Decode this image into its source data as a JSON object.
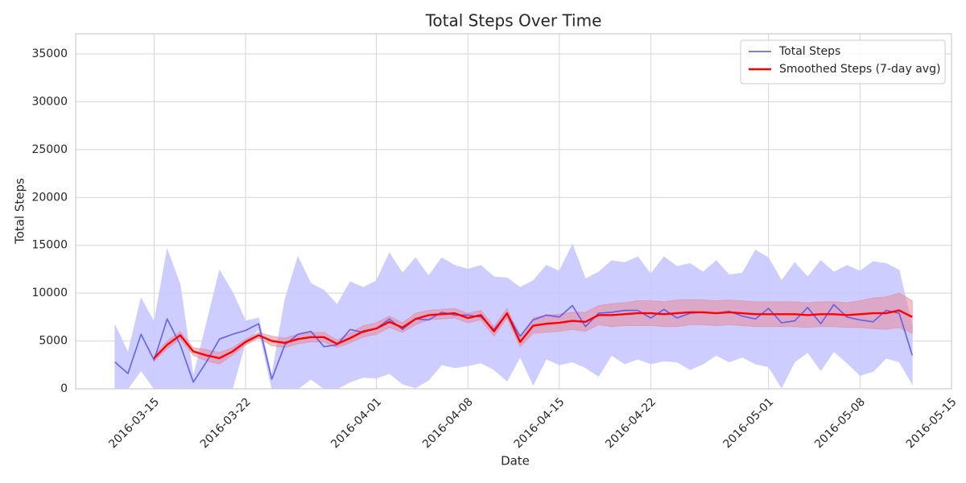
{
  "chart_data": {
    "type": "line",
    "title": "Total Steps Over Time",
    "xlabel": "Date",
    "ylabel": "Total Steps",
    "x": [
      "2016-03-12",
      "2016-03-13",
      "2016-03-14",
      "2016-03-15",
      "2016-03-16",
      "2016-03-17",
      "2016-03-18",
      "2016-03-19",
      "2016-03-20",
      "2016-03-21",
      "2016-03-22",
      "2016-03-23",
      "2016-03-24",
      "2016-03-25",
      "2016-03-26",
      "2016-03-27",
      "2016-03-28",
      "2016-03-29",
      "2016-03-30",
      "2016-03-31",
      "2016-04-01",
      "2016-04-02",
      "2016-04-03",
      "2016-04-04",
      "2016-04-05",
      "2016-04-06",
      "2016-04-07",
      "2016-04-08",
      "2016-04-09",
      "2016-04-10",
      "2016-04-11",
      "2016-04-12",
      "2016-04-13",
      "2016-04-14",
      "2016-04-15",
      "2016-04-16",
      "2016-04-17",
      "2016-04-18",
      "2016-04-19",
      "2016-04-20",
      "2016-04-21",
      "2016-04-22",
      "2016-04-23",
      "2016-04-24",
      "2016-04-25",
      "2016-04-26",
      "2016-04-27",
      "2016-04-28",
      "2016-04-29",
      "2016-04-30",
      "2016-05-01",
      "2016-05-02",
      "2016-05-03",
      "2016-05-04",
      "2016-05-05",
      "2016-05-06",
      "2016-05-07",
      "2016-05-08",
      "2016-05-09",
      "2016-05-10",
      "2016-05-11",
      "2016-05-12"
    ],
    "xlim": [
      "2016-03-09",
      "2016-05-15"
    ],
    "xticks": [
      "2016-03-15",
      "2016-03-22",
      "2016-04-01",
      "2016-04-08",
      "2016-04-15",
      "2016-04-22",
      "2016-05-01",
      "2016-05-08",
      "2016-05-15"
    ],
    "ylim": [
      0,
      37100
    ],
    "yticks": [
      0,
      5000,
      10000,
      15000,
      20000,
      25000,
      30000,
      35000
    ],
    "grid": true,
    "legend": "upper right",
    "series": [
      {
        "name": "Total Steps",
        "color": "#5050ee",
        "band_color": "#c8c8ff",
        "values": [
          2800,
          1600,
          5700,
          3000,
          7300,
          4600,
          700,
          2800,
          5200,
          5700,
          6100,
          6800,
          1000,
          4600,
          5700,
          6000,
          4400,
          4600,
          6200,
          5900,
          6300,
          7300,
          6200,
          7300,
          7200,
          8000,
          7700,
          7700,
          7500,
          6200,
          7900,
          5500,
          7200,
          7700,
          7500,
          8700,
          6500,
          7900,
          8000,
          8200,
          8200,
          7400,
          8300,
          7400,
          7900,
          8000,
          7900,
          8100,
          7600,
          7300,
          8400,
          6900,
          7100,
          8500,
          6800,
          8800,
          7500,
          7200,
          7000,
          8200,
          7900,
          3500
        ],
        "upper": [
          6700,
          3800,
          9500,
          7000,
          14600,
          10900,
          1300,
          6800,
          12400,
          10100,
          7100,
          7400,
          1400,
          9300,
          13800,
          11000,
          10300,
          8800,
          11200,
          10600,
          11300,
          14200,
          12100,
          13700,
          11800,
          13700,
          12900,
          12500,
          12900,
          11700,
          11600,
          10600,
          11300,
          12900,
          12300,
          15100,
          11500,
          12200,
          13400,
          13200,
          13800,
          12000,
          13800,
          12800,
          13100,
          12200,
          13400,
          11900,
          12100,
          14500,
          13700,
          11300,
          13200,
          11700,
          13400,
          12200,
          12900,
          12300,
          13300,
          13100,
          12400,
          6500
        ],
        "lower": [
          0,
          0,
          1900,
          0,
          0,
          0,
          0,
          0,
          0,
          0,
          4900,
          6200,
          0,
          0,
          0,
          1000,
          0,
          0,
          700,
          1200,
          1100,
          1600,
          500,
          100,
          900,
          2500,
          2200,
          2400,
          2700,
          2000,
          800,
          3300,
          400,
          3100,
          2500,
          2800,
          2200,
          1300,
          3500,
          2600,
          3100,
          2600,
          2900,
          2800,
          2000,
          2600,
          3500,
          2800,
          3300,
          2600,
          2300,
          100,
          2800,
          3800,
          1900,
          3900,
          2700,
          1400,
          1800,
          3200,
          2800,
          500
        ]
      },
      {
        "name": "Smoothed Steps (7-day avg)",
        "color": "#ff0000",
        "band_color": "#e88a9a",
        "values": [
          null,
          null,
          null,
          3200,
          4600,
          5600,
          3900,
          3500,
          3200,
          3900,
          4900,
          5600,
          5000,
          4800,
          5200,
          5400,
          5400,
          4700,
          5300,
          6000,
          6300,
          7000,
          6400,
          7300,
          7700,
          7800,
          7900,
          7400,
          7700,
          6000,
          7900,
          4900,
          6600,
          6800,
          6900,
          7100,
          7000,
          7700,
          7700,
          7800,
          7900,
          7900,
          7800,
          7900,
          8000,
          8000,
          7900,
          8000,
          7900,
          7800,
          7800,
          7800,
          7800,
          7700,
          7800,
          7800,
          7700,
          7800,
          7900,
          7900,
          8200,
          7500
        ],
        "std": [
          null,
          null,
          null,
          300,
          400,
          400,
          400,
          600,
          600,
          400,
          300,
          300,
          500,
          500,
          500,
          500,
          500,
          400,
          500,
          600,
          600,
          600,
          500,
          600,
          500,
          500,
          500,
          500,
          500,
          500,
          500,
          500,
          800,
          900,
          900,
          900,
          1000,
          1000,
          1200,
          1200,
          1300,
          1300,
          1300,
          1400,
          1300,
          1300,
          1300,
          1300,
          1300,
          1300,
          1300,
          1300,
          1300,
          1300,
          1300,
          1300,
          1300,
          1400,
          1600,
          1700,
          1800,
          1700
        ]
      }
    ]
  }
}
